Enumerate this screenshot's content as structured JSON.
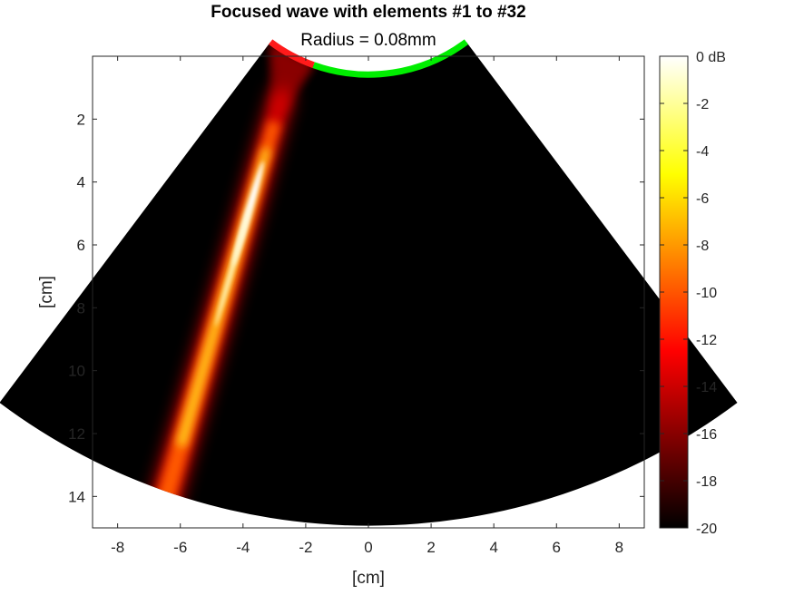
{
  "chart_data": {
    "type": "heatmap",
    "title": "Focused wave with elements #1 to #32",
    "subtitle": "Radius = 0.08mm",
    "xlabel": "[cm]",
    "ylabel": "[cm]",
    "xlim": [
      -8.8,
      8.8
    ],
    "ylim": [
      0,
      15
    ],
    "y_reversed": true,
    "x_ticks": [
      -8,
      -6,
      -4,
      -2,
      0,
      2,
      4,
      6,
      8
    ],
    "y_ticks": [
      2,
      4,
      6,
      8,
      10,
      12,
      14
    ],
    "grid": false,
    "sector": {
      "apex": [
        0,
        -4.6
      ],
      "inner_radius": 5.2,
      "outer_radius": 19.6,
      "half_angle_deg": 36.9
    },
    "transducer": {
      "active_elements": "#1 to #32",
      "active_color": "#ff1a1a",
      "inactive_color": "#00ee00",
      "active_x_range": [
        -3.12,
        -1.75
      ]
    },
    "beam": {
      "start": [
        -2.5,
        0.4
      ],
      "end": [
        -6.6,
        14.5
      ],
      "focus_depth": 5.0,
      "peak_db": 0
    },
    "colorbar": {
      "label_top": "0 dB",
      "range": [
        -20,
        0
      ],
      "ticks": [
        0,
        -2,
        -4,
        -6,
        -8,
        -10,
        -12,
        -14,
        -16,
        -18,
        -20
      ],
      "tick_labels": [
        "0 dB",
        "-2",
        "-4",
        "-6",
        "-8",
        "-10",
        "-12",
        "-14",
        "-16",
        "-18",
        "-20"
      ],
      "colormap": "hot",
      "stops": [
        "#000000",
        "#ff0000",
        "#ffff00",
        "#ffffff"
      ]
    },
    "background_color": "#000000"
  }
}
